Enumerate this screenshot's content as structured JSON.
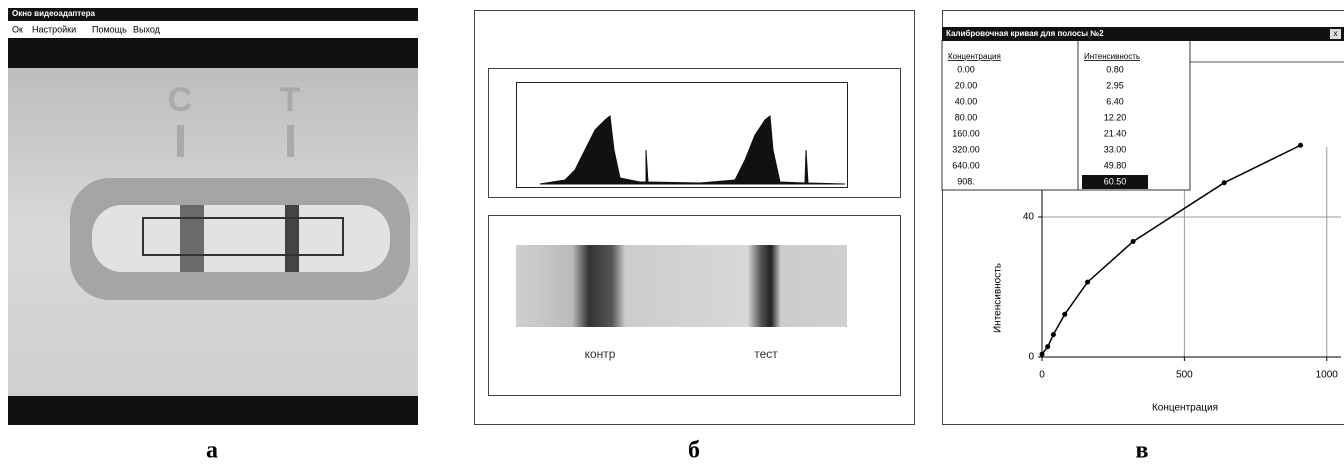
{
  "panel_a": {
    "window_title": "Окно видеоадаптера",
    "menu": [
      "Ок",
      "Настройки",
      "Помощь",
      "Выход"
    ],
    "strip_labels": [
      "C",
      "T"
    ],
    "label": "а"
  },
  "panel_b": {
    "peak_labels": [
      "контр",
      "тест"
    ],
    "label": "б"
  },
  "panel_c": {
    "label": "в",
    "window_title": "Калибровочная кривая для полосы №2",
    "close": "x",
    "table": {
      "headers": [
        "Концентрация",
        "Интенсивность"
      ],
      "rows": [
        [
          "0.00",
          "0.80"
        ],
        [
          "20.00",
          "2.95"
        ],
        [
          "40.00",
          "6.40"
        ],
        [
          "80.00",
          "12.20"
        ],
        [
          "160.00",
          "21.40"
        ],
        [
          "320.00",
          "33.00"
        ],
        [
          "640.00",
          "49.80"
        ],
        [
          "908.",
          "60.50"
        ]
      ]
    }
  },
  "chart_data": {
    "type": "line",
    "x_label": "Концентрация",
    "y_label": "Интенсивность",
    "x": [
      0,
      20,
      40,
      80,
      160,
      320,
      640,
      908
    ],
    "series": [
      {
        "color": "#000000",
        "values": [
          0.8,
          2.95,
          6.4,
          12.2,
          21.4,
          33,
          49.8,
          60.5
        ]
      }
    ],
    "xlim": [
      0,
      1050
    ],
    "ylim": [
      0,
      60
    ],
    "xticks": [
      0,
      500,
      1000
    ],
    "yticks": [
      0,
      40
    ],
    "grid": true
  }
}
